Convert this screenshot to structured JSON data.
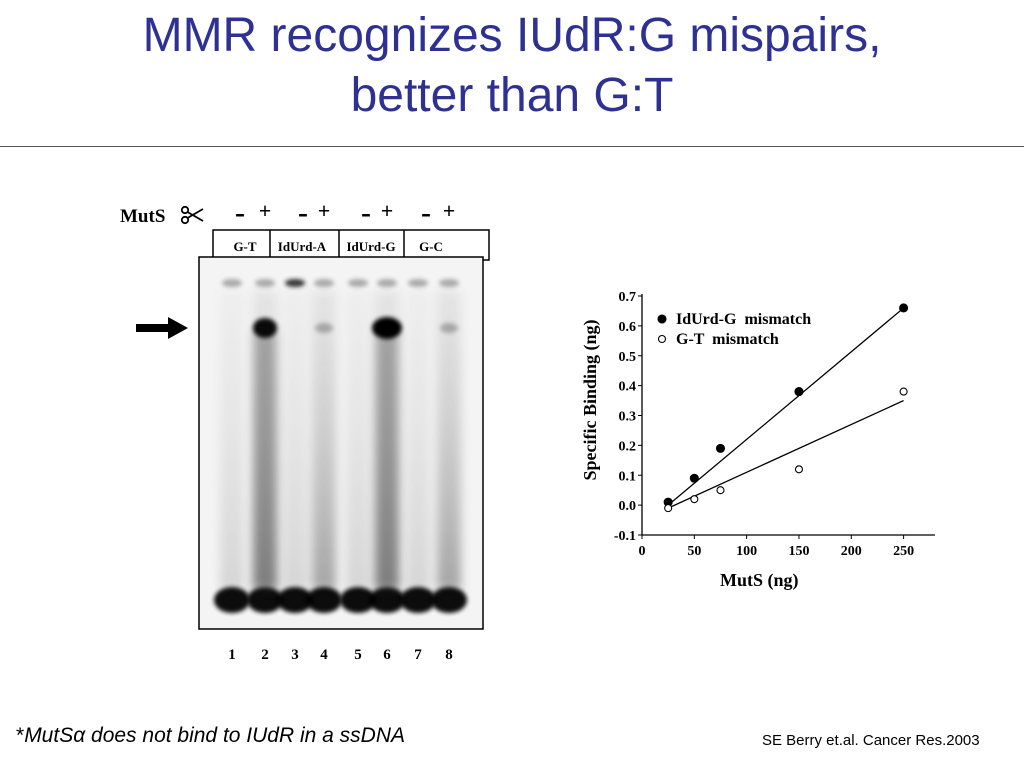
{
  "slide": {
    "title_line1": "MMR recognizes IUdR:G mispairs,",
    "title_line2": "better than G:T",
    "footnote_star": "*",
    "footnote_text": "MutSα does not bind to IUdR in a ssDNA",
    "citation": "SE Berry et.al. Cancer Res.2003"
  },
  "gel": {
    "protein_label": "MutS",
    "scissors_icon": "scissors-icon",
    "signs": [
      "-",
      "+",
      "-",
      "+",
      "-",
      "+",
      "-",
      "+"
    ],
    "groups": [
      "G-T",
      "IdUrd-A",
      "IdUrd-G",
      "G-C"
    ],
    "lane_numbers": [
      "1",
      "2",
      "3",
      "4",
      "5",
      "6",
      "7",
      "8"
    ],
    "arrow_icon": "arrow-right-icon"
  },
  "chart_data": {
    "type": "scatter",
    "title": "",
    "xlabel": "MutS (ng)",
    "ylabel": "Specific Binding (ng)",
    "xlim": [
      0,
      280
    ],
    "ylim": [
      -0.1,
      0.7
    ],
    "x_ticks": [
      "0",
      "50",
      "100",
      "150",
      "200",
      "250"
    ],
    "y_ticks": [
      "-0.1",
      "0.0",
      "0.1",
      "0.2",
      "0.3",
      "0.4",
      "0.5",
      "0.6",
      "0.7"
    ],
    "legend_position": "top-left",
    "series": [
      {
        "name": "IdUrd-G  mismatch",
        "marker": "filled-circle",
        "x": [
          25,
          50,
          75,
          150,
          250
        ],
        "y": [
          0.01,
          0.09,
          0.19,
          0.38,
          0.66
        ],
        "fit": [
          [
            25,
            0.0
          ],
          [
            250,
            0.66
          ]
        ]
      },
      {
        "name": "G-T  mismatch",
        "marker": "open-circle",
        "x": [
          25,
          50,
          75,
          150,
          250
        ],
        "y": [
          -0.01,
          0.02,
          0.05,
          0.12,
          0.38
        ],
        "fit": [
          [
            25,
            -0.01
          ],
          [
            250,
            0.35
          ]
        ]
      }
    ]
  }
}
